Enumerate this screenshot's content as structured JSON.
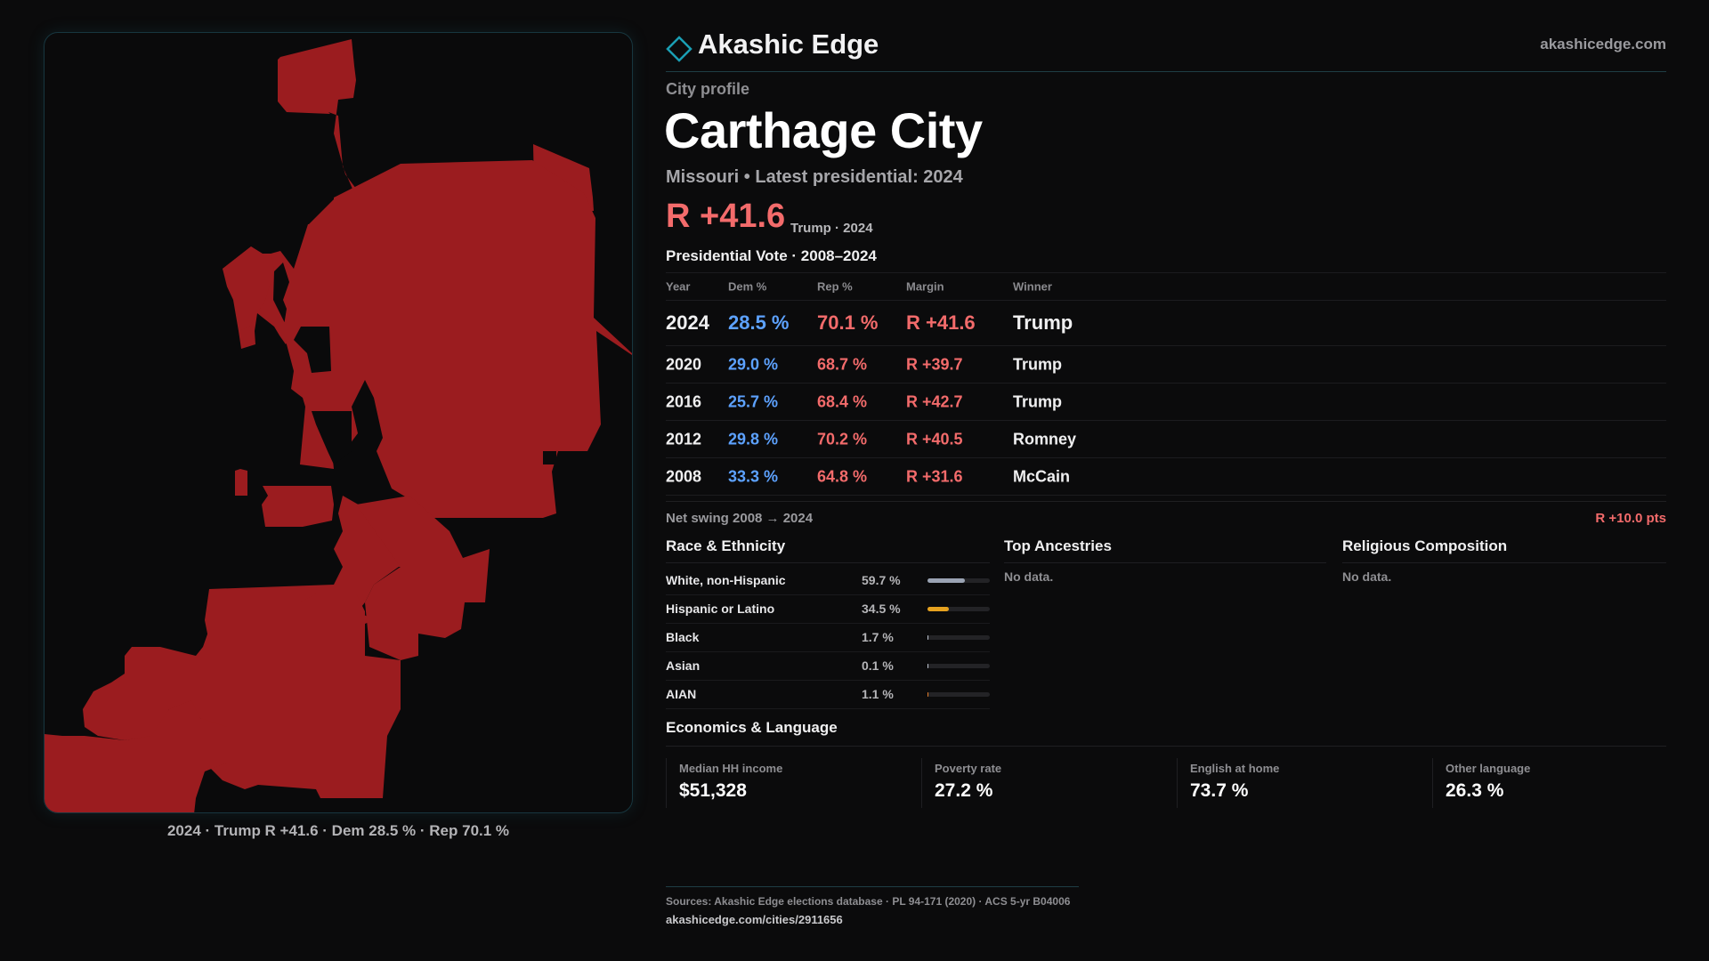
{
  "brand": {
    "name": "Akashic Edge",
    "url": "akashicedge.com"
  },
  "map": {
    "caption": "2024 · Trump R +41.6 · Dem 28.5 % · Rep 70.1 %",
    "fill_color": "#9b1c1f"
  },
  "profile": {
    "eyebrow": "City profile",
    "city": "Carthage City",
    "subline": "Missouri • Latest presidential: 2024",
    "margin": "R +41.6",
    "margin_note": "Trump · 2024"
  },
  "presidential": {
    "title": "Presidential Vote · 2008–2024",
    "headers": {
      "year": "Year",
      "dem": "Dem %",
      "rep": "Rep %",
      "margin": "Margin",
      "winner": "Winner"
    },
    "rows": [
      {
        "year": "2024",
        "dem": "28.5 %",
        "rep": "70.1 %",
        "margin": "R +41.6",
        "winner": "Trump"
      },
      {
        "year": "2020",
        "dem": "29.0 %",
        "rep": "68.7 %",
        "margin": "R +39.7",
        "winner": "Trump"
      },
      {
        "year": "2016",
        "dem": "25.7 %",
        "rep": "68.4 %",
        "margin": "R +42.7",
        "winner": "Trump"
      },
      {
        "year": "2012",
        "dem": "29.8 %",
        "rep": "70.2 %",
        "margin": "R +40.5",
        "winner": "Romney"
      },
      {
        "year": "2008",
        "dem": "33.3 %",
        "rep": "64.8 %",
        "margin": "R +31.6",
        "winner": "McCain"
      }
    ],
    "swing_label": "Net swing 2008 → 2024",
    "swing_value": "R +10.0 pts"
  },
  "race": {
    "title": "Race & Ethnicity",
    "rows": [
      {
        "label": "White, non-Hispanic",
        "value": "59.7 %",
        "pct": 59.7,
        "color": "#9aa3b3"
      },
      {
        "label": "Hispanic or Latino",
        "value": "34.5 %",
        "pct": 34.5,
        "color": "#e6a21f"
      },
      {
        "label": "Black",
        "value": "1.7 %",
        "pct": 1.7,
        "color": "#c0c6d2"
      },
      {
        "label": "Asian",
        "value": "0.1 %",
        "pct": 0.1,
        "color": "#c0c6d2"
      },
      {
        "label": "AIAN",
        "value": "1.1 %",
        "pct": 1.1,
        "color": "#e07b2a"
      }
    ]
  },
  "ancestries": {
    "title": "Top Ancestries",
    "empty": "No data."
  },
  "religion": {
    "title": "Religious Composition",
    "empty": "No data."
  },
  "economics": {
    "title": "Economics & Language",
    "stats": [
      {
        "label": "Median HH income",
        "value": "$51,328"
      },
      {
        "label": "Poverty rate",
        "value": "27.2 %"
      },
      {
        "label": "English at home",
        "value": "73.7 %"
      },
      {
        "label": "Other language",
        "value": "26.3 %"
      }
    ]
  },
  "sources": {
    "text": "Sources: Akashic Edge elections database · PL 94-171 (2020) · ACS 5-yr B04006",
    "url": "akashicedge.com/cities/2911656"
  },
  "colors": {
    "dem": "#5da2ff",
    "rep": "#f36b6b",
    "accent": "#1a9fb4"
  }
}
